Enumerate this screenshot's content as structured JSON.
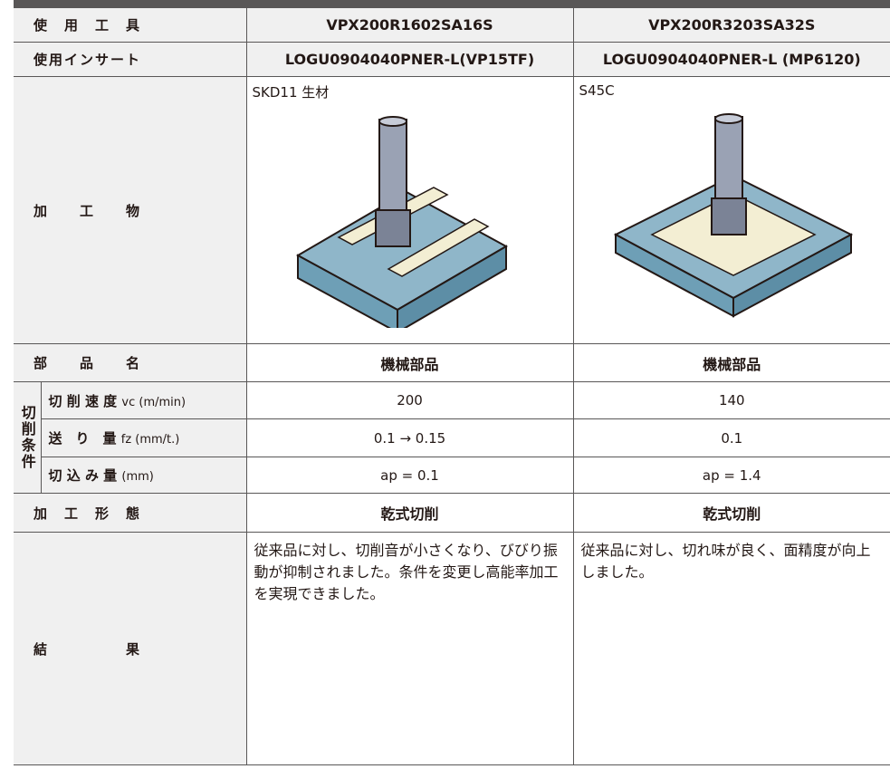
{
  "table": {
    "rows": [
      {
        "label": "使　用　工　具",
        "values": [
          "VPX200R1602SA16S",
          "VPX200R3203SA32S"
        ]
      },
      {
        "label": "使用インサート",
        "values": [
          "LOGU0904040PNER-L(VP15TF)",
          "LOGU0904040PNER-L (MP6120)"
        ]
      },
      {
        "label": "加　　工　　物",
        "values": [
          "SKD11 生材",
          "S45C"
        ]
      },
      {
        "label": "部　　品　　名",
        "values": [
          "機械部品",
          "機械部品"
        ]
      }
    ],
    "conditions_group": "切削条件",
    "conditions": [
      {
        "label": "切 削 速 度",
        "unit": "vc (m/min)",
        "values": [
          "200",
          "140"
        ]
      },
      {
        "label": "送　り　量",
        "unit": "fz (mm/t.)",
        "values": [
          "0.1 → 0.15",
          "0.1"
        ]
      },
      {
        "label": "切 込 み 量",
        "unit": "(mm)",
        "values": [
          "ap = 0.1",
          "ap = 1.4"
        ]
      }
    ],
    "method": {
      "label": "加　工　形　態",
      "values": [
        "乾式切削",
        "乾式切削"
      ]
    },
    "result": {
      "label": "結　　　　　果",
      "values": [
        "従来品に対し、切削音が小さくなり、びびり振動が抑制されました。条件を変更し高能率加工を実現できました。",
        "従来品に対し、切れ味が良く、面精度が向上しました。"
      ]
    }
  }
}
